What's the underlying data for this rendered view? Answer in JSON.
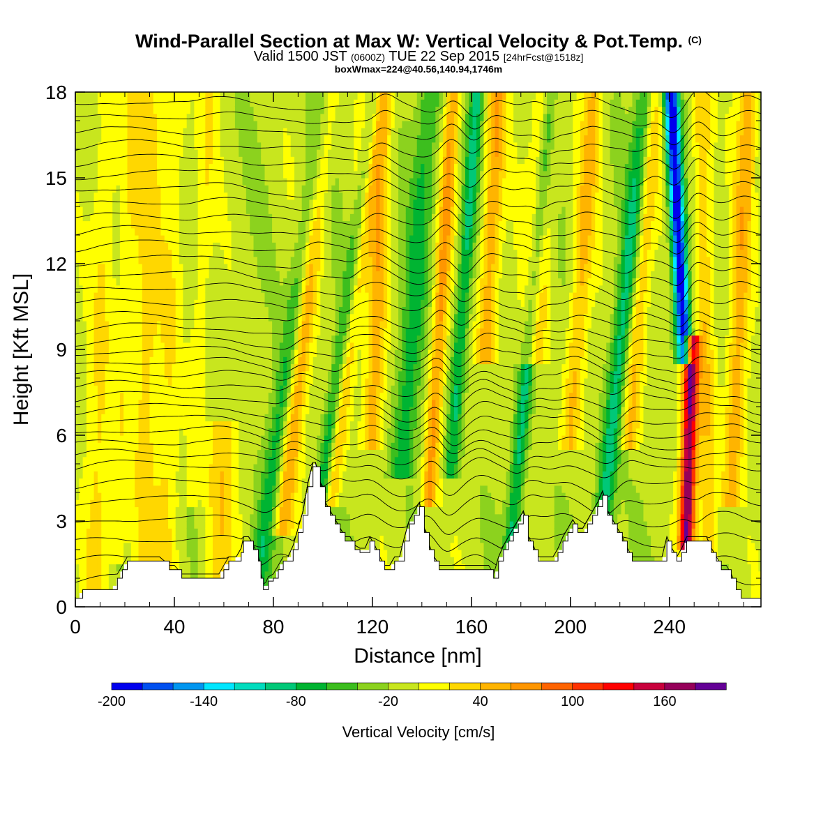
{
  "header": {
    "title": "Wind-Parallel Section at Max W: Vertical Velocity & Pot.Temp.",
    "copyright_mark": "(C)",
    "valid_prefix": "Valid 1500 JST",
    "valid_zulu": "(0600Z)",
    "valid_date": "TUE 22 Sep 2015",
    "forecast_tag": "[24hrFcst@1518z]",
    "box_info": "boxWmax=224@40.56,140.94,1746m"
  },
  "chart_data": {
    "type": "heatmap",
    "xlabel": "Distance [nm]",
    "ylabel": "Height [Kft MSL]",
    "xlim": [
      0,
      277
    ],
    "ylim": [
      0,
      18
    ],
    "x_ticks": [
      0,
      40,
      80,
      120,
      160,
      200,
      240
    ],
    "y_ticks": [
      0,
      3,
      6,
      9,
      12,
      15,
      18
    ],
    "grid": false,
    "colorbar": {
      "title": "Vertical Velocity [cm/s]",
      "min": -200,
      "max": 200,
      "step": 20,
      "labels": [
        "-200",
        "-140",
        "-80",
        "-20",
        "40",
        "100",
        "160"
      ],
      "label_values": [
        -200,
        -140,
        -80,
        -20,
        40,
        100,
        160
      ],
      "colors": [
        "#0000ee",
        "#0050f0",
        "#0096f0",
        "#00e6ff",
        "#00dcbe",
        "#00c878",
        "#00b432",
        "#3cbe1e",
        "#8cd21e",
        "#c8e61e",
        "#ffff00",
        "#ffd700",
        "#ffb400",
        "#ff9600",
        "#ff6400",
        "#ff3200",
        "#ff0000",
        "#c8003c",
        "#96005a",
        "#640096"
      ]
    },
    "terrain": {
      "x": [
        0,
        1,
        3,
        5,
        8,
        10,
        13,
        15,
        17,
        19,
        21,
        23,
        26,
        30,
        34,
        38,
        40,
        43,
        45,
        48,
        50,
        53,
        55,
        58,
        60,
        62,
        65,
        67,
        68,
        70,
        72,
        74,
        75,
        76,
        77,
        78,
        80,
        82,
        84,
        86,
        88,
        90,
        92,
        94,
        96,
        97,
        99,
        101,
        103,
        105,
        107,
        109,
        111,
        113,
        115,
        117,
        119,
        121,
        123,
        125,
        127,
        129,
        131,
        133,
        135,
        137,
        139,
        141,
        143,
        145,
        147,
        149,
        151,
        153,
        155,
        157,
        159,
        161,
        163,
        165,
        167,
        169,
        171,
        173,
        175,
        177,
        179,
        181,
        183,
        185,
        187,
        189,
        191,
        193,
        195,
        197,
        199,
        201,
        203,
        205,
        207,
        209,
        211,
        213,
        215,
        217,
        219,
        221,
        223,
        225,
        227,
        229,
        231,
        233,
        235,
        237,
        239,
        241,
        243,
        245,
        247,
        249,
        251,
        253,
        255,
        257,
        259,
        261,
        263,
        265,
        267,
        269,
        271,
        273,
        275,
        277
      ],
      "h": [
        0.3,
        0.3,
        0.6,
        0.6,
        0.6,
        0.6,
        0.6,
        0.6,
        1.0,
        1.3,
        1.6,
        1.6,
        1.6,
        1.6,
        1.6,
        1.3,
        1.3,
        1.0,
        1.0,
        1.0,
        1.0,
        1.0,
        1.0,
        1.0,
        1.3,
        1.6,
        1.6,
        1.9,
        2.3,
        2.3,
        2.0,
        1.6,
        1.0,
        0.6,
        0.6,
        0.9,
        1.0,
        1.3,
        1.6,
        1.6,
        2.0,
        2.6,
        3.2,
        4.2,
        4.9,
        4.9,
        4.2,
        3.5,
        3.2,
        2.9,
        2.6,
        2.3,
        2.3,
        2.0,
        1.9,
        1.9,
        2.3,
        2.0,
        1.6,
        1.3,
        1.3,
        1.6,
        1.6,
        2.3,
        2.9,
        3.2,
        3.5,
        2.6,
        2.0,
        1.6,
        1.3,
        1.3,
        1.3,
        1.3,
        1.3,
        1.3,
        1.3,
        1.3,
        1.3,
        1.3,
        1.3,
        1.0,
        1.6,
        2.0,
        2.3,
        2.6,
        2.9,
        3.2,
        2.3,
        2.0,
        1.6,
        1.6,
        1.6,
        1.6,
        1.9,
        2.3,
        2.6,
        2.9,
        2.6,
        2.6,
        2.9,
        3.2,
        3.5,
        3.9,
        3.2,
        2.9,
        2.6,
        2.3,
        1.9,
        1.6,
        1.6,
        1.6,
        1.6,
        1.6,
        1.6,
        1.6,
        2.3,
        1.9,
        1.6,
        1.9,
        2.3,
        2.3,
        2.3,
        2.3,
        2.3,
        1.9,
        1.6,
        1.3,
        1.3,
        1.0,
        0.6,
        0.3,
        0.3,
        0.3,
        0.3,
        0.3
      ]
    },
    "wind_bands": [
      {
        "x": 8,
        "w": 5,
        "lean": 0.3,
        "y0": 0.5,
        "y1": 18,
        "amp": 35
      },
      {
        "x": 17,
        "w": 4,
        "lean": 0.4,
        "y0": 2,
        "y1": 18,
        "amp": 30
      },
      {
        "x": 26,
        "w": 5,
        "lean": 0.3,
        "y0": 0.5,
        "y1": 18,
        "amp": 35
      },
      {
        "x": 36,
        "w": 5,
        "lean": 0.3,
        "y0": 1,
        "y1": 18,
        "amp": 30
      },
      {
        "x": 47,
        "w": 4,
        "lean": 0.5,
        "y0": 4,
        "y1": 18,
        "amp": 25
      },
      {
        "x": 58,
        "w": 6,
        "lean": 0.3,
        "y0": 1.5,
        "y1": 6,
        "amp": 45
      },
      {
        "x": 74,
        "w": 4,
        "lean": 1.6,
        "y0": 1,
        "y1": 18,
        "amp": -60
      },
      {
        "x": 84,
        "w": 4,
        "lean": 1.2,
        "y0": 3,
        "y1": 18,
        "amp": 70
      },
      {
        "x": 97,
        "w": 3,
        "lean": 1.5,
        "y0": 2,
        "y1": 18,
        "amp": -90
      },
      {
        "x": 103,
        "w": 4,
        "lean": 1.3,
        "y0": 4,
        "y1": 18,
        "amp": 70
      },
      {
        "x": 120,
        "w": 4,
        "lean": 0.4,
        "y0": 6,
        "y1": 18,
        "amp": 60
      },
      {
        "x": 132,
        "w": 5,
        "lean": 0.9,
        "y0": 5,
        "y1": 18,
        "amp": -55
      },
      {
        "x": 143,
        "w": 3,
        "lean": 0.7,
        "y0": 4,
        "y1": 18,
        "amp": 75
      },
      {
        "x": 152,
        "w": 3,
        "lean": 0.8,
        "y0": 5,
        "y1": 18,
        "amp": -70
      },
      {
        "x": 166,
        "w": 4,
        "lean": 0.5,
        "y0": 9,
        "y1": 18,
        "amp": 70
      },
      {
        "x": 176,
        "w": 3,
        "lean": 1.0,
        "y0": 2,
        "y1": 18,
        "amp": -75
      },
      {
        "x": 185,
        "w": 5,
        "lean": 0.6,
        "y0": 9,
        "y1": 18,
        "amp": 60
      },
      {
        "x": 200,
        "w": 4,
        "lean": 0.8,
        "y0": 6,
        "y1": 18,
        "amp": 55
      },
      {
        "x": 213,
        "w": 4,
        "lean": 1.2,
        "y0": 3,
        "y1": 18,
        "amp": -80
      },
      {
        "x": 224,
        "w": 4,
        "lean": 0.8,
        "y0": 6,
        "y1": 18,
        "amp": 60
      },
      {
        "x": 246,
        "w": 3,
        "lean": -0.6,
        "y0": 9,
        "y1": 18,
        "amp": -200
      },
      {
        "x": 247,
        "w": 3,
        "lean": 0.3,
        "y0": 2.5,
        "y1": 9,
        "amp": 190
      },
      {
        "x": 256,
        "w": 4,
        "lean": -0.2,
        "y0": 2,
        "y1": 18,
        "amp": 55
      },
      {
        "x": 265,
        "w": 4,
        "lean": 0.5,
        "y0": 4,
        "y1": 18,
        "amp": 60
      }
    ],
    "theta_levels_kft": [
      0.8,
      1.5,
      2.2,
      2.9,
      3.6,
      4.2,
      4.8,
      5.2,
      5.6,
      6.0,
      6.4,
      6.8,
      7.2,
      7.6,
      8.0,
      8.4,
      8.8,
      9.2,
      9.6,
      10.0,
      10.5,
      11.0,
      11.5,
      12.0,
      12.5,
      13.0,
      13.5,
      14.0,
      14.5,
      15.0,
      15.5,
      16.0,
      16.5,
      17.0,
      17.5
    ]
  }
}
